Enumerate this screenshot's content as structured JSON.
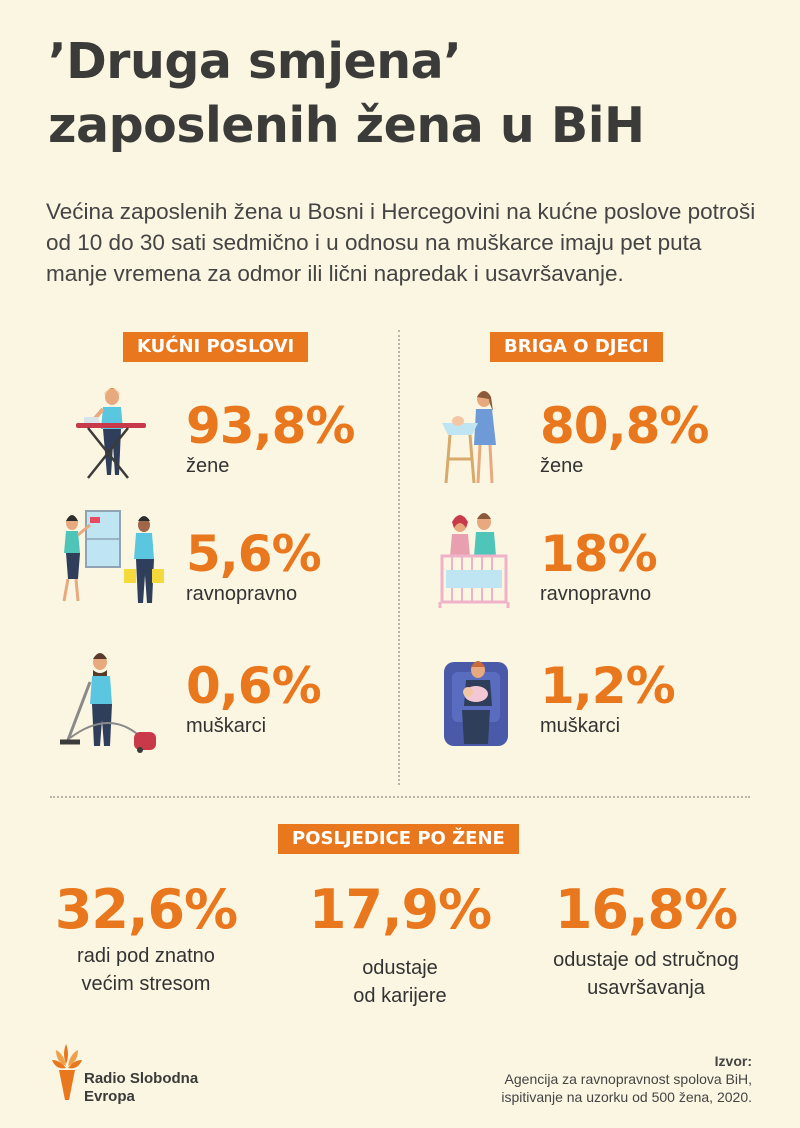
{
  "title": {
    "line1": "’Druga smjena’",
    "line2": "zaposlenih žena u BiH"
  },
  "intro": "Većina zaposlenih žena u Bosni i Hercegovini na kućne poslove potroši od 10 do 30 sati sedmično i u odnosu na muškarce imaju pet puta manje vremena za odmor ili lični napredak i usavršavanje.",
  "chart_data": [
    {
      "type": "table",
      "title": "KUĆNI POSLOVI",
      "categories": [
        "žene",
        "ravnopravno",
        "muškarci"
      ],
      "values": [
        93.8,
        5.6,
        0.6
      ],
      "display": [
        "93,8%",
        "5,6%",
        "0,6%"
      ]
    },
    {
      "type": "table",
      "title": "BRIGA O DJECI",
      "categories": [
        "žene",
        "ravnopravno",
        "muškarci"
      ],
      "values": [
        80.8,
        18,
        1.2
      ],
      "display": [
        "80,8%",
        "18%",
        "1,2%"
      ]
    },
    {
      "type": "table",
      "title": "POSLJEDICE PO ŽENE",
      "categories": [
        "radi pod znatno većim stresom",
        "odustaje od karijere",
        "odustaje od stručnog usavršavanja"
      ],
      "values": [
        32.6,
        17.9,
        16.8
      ],
      "display": [
        "32,6%",
        "17,9%",
        "16,8%"
      ],
      "label_lines": [
        [
          "radi pod znatno",
          "većim stresom"
        ],
        [
          "odustaje",
          "od karijere"
        ],
        [
          "odustaje od stručnog",
          "usavršavanja"
        ]
      ]
    }
  ],
  "colors": {
    "accent": "#e8771d",
    "background": "#fbf6e2",
    "text": "#3b3b39"
  },
  "icons": {
    "house": [
      "woman-ironing-icon",
      "couple-cleaning-window-icon",
      "man-vacuuming-icon"
    ],
    "children": [
      "mother-bathing-baby-icon",
      "parents-at-crib-icon",
      "father-holding-baby-icon"
    ]
  },
  "logo": {
    "line1": "Radio Slobodna",
    "line2": "Evropa"
  },
  "source": {
    "head": "Izvor:",
    "line1": "Agencija za ravnopravnost spolova BiH,",
    "line2": "ispitivanje na uzorku od 500 žena, 2020."
  }
}
